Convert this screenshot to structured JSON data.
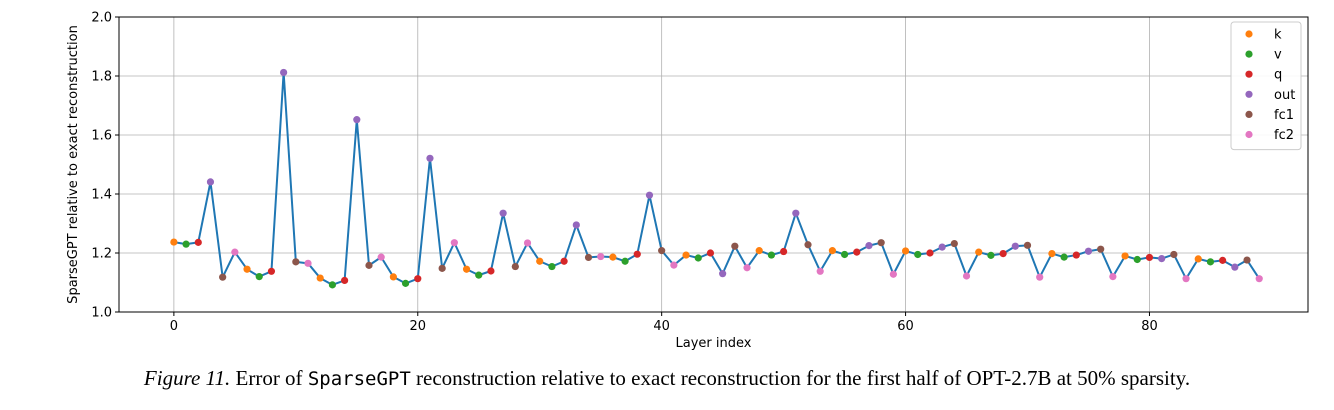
{
  "caption": {
    "figure_label": "Figure 11.",
    "text_before": "Error of",
    "code": "SparseGPT",
    "text_after": "reconstruction relative to exact reconstruction for the first half of OPT-2.7B at 50% sparsity."
  },
  "chart_data": {
    "type": "line",
    "xlabel": "Layer index",
    "ylabel": "SparseGPT relative to exact reconstruction",
    "xlim": [
      -4.5,
      93
    ],
    "ylim": [
      1.0,
      2.0
    ],
    "xticks": [
      "0",
      "20",
      "40",
      "60",
      "80"
    ],
    "yticks": [
      "1.0",
      "1.2",
      "1.4",
      "1.6",
      "1.8",
      "2.0"
    ],
    "grid": true,
    "legend_position": "top-right",
    "line_color": "#1f77b4",
    "legend": [
      {
        "name": "k",
        "color": "#ff7f0e"
      },
      {
        "name": "v",
        "color": "#2ca02c"
      },
      {
        "name": "q",
        "color": "#d62728"
      },
      {
        "name": "out",
        "color": "#9467bd"
      },
      {
        "name": "fc1",
        "color": "#8c564b"
      },
      {
        "name": "fc2",
        "color": "#e377c2"
      }
    ],
    "points": [
      {
        "x": 0,
        "y": 1.237,
        "type": "k"
      },
      {
        "x": 1,
        "y": 1.23,
        "type": "v"
      },
      {
        "x": 2,
        "y": 1.236,
        "type": "q"
      },
      {
        "x": 3,
        "y": 1.441,
        "type": "out"
      },
      {
        "x": 4,
        "y": 1.118,
        "type": "fc1"
      },
      {
        "x": 5,
        "y": 1.203,
        "type": "fc2"
      },
      {
        "x": 6,
        "y": 1.145,
        "type": "k"
      },
      {
        "x": 7,
        "y": 1.12,
        "type": "v"
      },
      {
        "x": 8,
        "y": 1.138,
        "type": "q"
      },
      {
        "x": 9,
        "y": 1.812,
        "type": "out"
      },
      {
        "x": 10,
        "y": 1.17,
        "type": "fc1"
      },
      {
        "x": 11,
        "y": 1.165,
        "type": "fc2"
      },
      {
        "x": 12,
        "y": 1.115,
        "type": "k"
      },
      {
        "x": 13,
        "y": 1.092,
        "type": "v"
      },
      {
        "x": 14,
        "y": 1.107,
        "type": "q"
      },
      {
        "x": 15,
        "y": 1.652,
        "type": "out"
      },
      {
        "x": 16,
        "y": 1.158,
        "type": "fc1"
      },
      {
        "x": 17,
        "y": 1.186,
        "type": "fc2"
      },
      {
        "x": 18,
        "y": 1.119,
        "type": "k"
      },
      {
        "x": 19,
        "y": 1.097,
        "type": "v"
      },
      {
        "x": 20,
        "y": 1.113,
        "type": "q"
      },
      {
        "x": 21,
        "y": 1.521,
        "type": "out"
      },
      {
        "x": 22,
        "y": 1.148,
        "type": "fc1"
      },
      {
        "x": 23,
        "y": 1.235,
        "type": "fc2"
      },
      {
        "x": 24,
        "y": 1.145,
        "type": "k"
      },
      {
        "x": 25,
        "y": 1.125,
        "type": "v"
      },
      {
        "x": 26,
        "y": 1.139,
        "type": "q"
      },
      {
        "x": 27,
        "y": 1.335,
        "type": "out"
      },
      {
        "x": 28,
        "y": 1.154,
        "type": "fc1"
      },
      {
        "x": 29,
        "y": 1.234,
        "type": "fc2"
      },
      {
        "x": 30,
        "y": 1.172,
        "type": "k"
      },
      {
        "x": 31,
        "y": 1.154,
        "type": "v"
      },
      {
        "x": 32,
        "y": 1.172,
        "type": "q"
      },
      {
        "x": 33,
        "y": 1.295,
        "type": "out"
      },
      {
        "x": 34,
        "y": 1.185,
        "type": "fc1"
      },
      {
        "x": 35,
        "y": 1.188,
        "type": "fc2"
      },
      {
        "x": 36,
        "y": 1.186,
        "type": "k"
      },
      {
        "x": 37,
        "y": 1.172,
        "type": "v"
      },
      {
        "x": 38,
        "y": 1.196,
        "type": "q"
      },
      {
        "x": 39,
        "y": 1.396,
        "type": "out"
      },
      {
        "x": 40,
        "y": 1.208,
        "type": "fc1"
      },
      {
        "x": 41,
        "y": 1.159,
        "type": "fc2"
      },
      {
        "x": 42,
        "y": 1.193,
        "type": "k"
      },
      {
        "x": 43,
        "y": 1.183,
        "type": "v"
      },
      {
        "x": 44,
        "y": 1.2,
        "type": "q"
      },
      {
        "x": 45,
        "y": 1.13,
        "type": "out"
      },
      {
        "x": 46,
        "y": 1.223,
        "type": "fc1"
      },
      {
        "x": 47,
        "y": 1.15,
        "type": "fc2"
      },
      {
        "x": 48,
        "y": 1.208,
        "type": "k"
      },
      {
        "x": 49,
        "y": 1.193,
        "type": "v"
      },
      {
        "x": 50,
        "y": 1.205,
        "type": "q"
      },
      {
        "x": 51,
        "y": 1.335,
        "type": "out"
      },
      {
        "x": 52,
        "y": 1.228,
        "type": "fc1"
      },
      {
        "x": 53,
        "y": 1.138,
        "type": "fc2"
      },
      {
        "x": 54,
        "y": 1.208,
        "type": "k"
      },
      {
        "x": 55,
        "y": 1.195,
        "type": "v"
      },
      {
        "x": 56,
        "y": 1.203,
        "type": "q"
      },
      {
        "x": 57,
        "y": 1.225,
        "type": "out"
      },
      {
        "x": 58,
        "y": 1.235,
        "type": "fc1"
      },
      {
        "x": 59,
        "y": 1.128,
        "type": "fc2"
      },
      {
        "x": 60,
        "y": 1.207,
        "type": "k"
      },
      {
        "x": 61,
        "y": 1.195,
        "type": "v"
      },
      {
        "x": 62,
        "y": 1.2,
        "type": "q"
      },
      {
        "x": 63,
        "y": 1.22,
        "type": "out"
      },
      {
        "x": 64,
        "y": 1.232,
        "type": "fc1"
      },
      {
        "x": 65,
        "y": 1.122,
        "type": "fc2"
      },
      {
        "x": 66,
        "y": 1.203,
        "type": "k"
      },
      {
        "x": 67,
        "y": 1.192,
        "type": "v"
      },
      {
        "x": 68,
        "y": 1.198,
        "type": "q"
      },
      {
        "x": 69,
        "y": 1.223,
        "type": "out"
      },
      {
        "x": 70,
        "y": 1.226,
        "type": "fc1"
      },
      {
        "x": 71,
        "y": 1.118,
        "type": "fc2"
      },
      {
        "x": 72,
        "y": 1.198,
        "type": "k"
      },
      {
        "x": 73,
        "y": 1.186,
        "type": "v"
      },
      {
        "x": 74,
        "y": 1.193,
        "type": "q"
      },
      {
        "x": 75,
        "y": 1.206,
        "type": "out"
      },
      {
        "x": 76,
        "y": 1.213,
        "type": "fc1"
      },
      {
        "x": 77,
        "y": 1.12,
        "type": "fc2"
      },
      {
        "x": 78,
        "y": 1.19,
        "type": "k"
      },
      {
        "x": 79,
        "y": 1.178,
        "type": "v"
      },
      {
        "x": 80,
        "y": 1.185,
        "type": "q"
      },
      {
        "x": 81,
        "y": 1.181,
        "type": "out"
      },
      {
        "x": 82,
        "y": 1.195,
        "type": "fc1"
      },
      {
        "x": 83,
        "y": 1.113,
        "type": "fc2"
      },
      {
        "x": 84,
        "y": 1.18,
        "type": "k"
      },
      {
        "x": 85,
        "y": 1.17,
        "type": "v"
      },
      {
        "x": 86,
        "y": 1.175,
        "type": "q"
      },
      {
        "x": 87,
        "y": 1.152,
        "type": "out"
      },
      {
        "x": 88,
        "y": 1.176,
        "type": "fc1"
      },
      {
        "x": 89,
        "y": 1.113,
        "type": "fc2"
      }
    ]
  }
}
